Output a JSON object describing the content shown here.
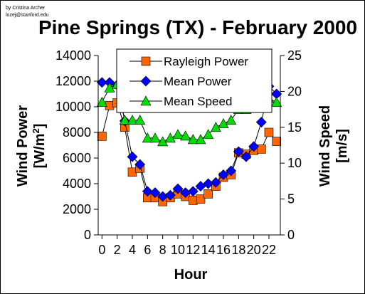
{
  "credit_lines": [
    "by Cristina Archer",
    "lozej@stanford.edu"
  ],
  "chart_data": {
    "type": "line",
    "title": "Pine Springs (TX) - February 2000",
    "xlabel": "Hour",
    "ylabel_left": "Wind Power [W/m2]",
    "ylabel_right": "Wind Speed [m/s]",
    "x": [
      0,
      1,
      2,
      3,
      4,
      5,
      6,
      7,
      8,
      9,
      10,
      11,
      12,
      13,
      14,
      15,
      16,
      17,
      18,
      19,
      20,
      21,
      22,
      23
    ],
    "xticks": [
      0,
      2,
      4,
      6,
      8,
      10,
      12,
      14,
      16,
      18,
      20,
      22
    ],
    "xlim": [
      -0.5,
      23.5
    ],
    "ylim_left": [
      0,
      14000
    ],
    "yticks_left": [
      0,
      2000,
      4000,
      6000,
      8000,
      10000,
      12000,
      14000
    ],
    "ylim_right": [
      0,
      25
    ],
    "yticks_right": [
      0,
      5,
      10,
      15,
      20,
      25
    ],
    "grid": false,
    "legend_position": "top-center",
    "series": [
      {
        "name": "Rayleigh Power",
        "axis": "left",
        "marker": "square",
        "color": "#FF6600",
        "values": [
          7700,
          10100,
          10300,
          8400,
          4900,
          5200,
          2900,
          2900,
          2600,
          2900,
          3200,
          3000,
          2700,
          2800,
          3200,
          3800,
          4500,
          4700,
          6400,
          6300,
          6600,
          6700,
          8000,
          7300
        ]
      },
      {
        "name": "Mean Power",
        "axis": "left",
        "marker": "diamond",
        "color": "#0000FF",
        "values": [
          11900,
          11900,
          11700,
          8900,
          6100,
          5500,
          3400,
          3300,
          3000,
          3100,
          3600,
          3300,
          3400,
          3800,
          4000,
          4100,
          4700,
          5000,
          6500,
          6100,
          6900,
          8800,
          11600,
          11000
        ]
      },
      {
        "name": "Mean Speed",
        "axis": "right",
        "marker": "triangle",
        "color": "#00DD00",
        "values": [
          18.5,
          20.5,
          21,
          16,
          16,
          16,
          13.5,
          13.5,
          13,
          13.5,
          14,
          13.8,
          13.3,
          13.3,
          14,
          15,
          15.5,
          16,
          17.5,
          17.5,
          20,
          20.5,
          19,
          18.5
        ]
      }
    ]
  }
}
